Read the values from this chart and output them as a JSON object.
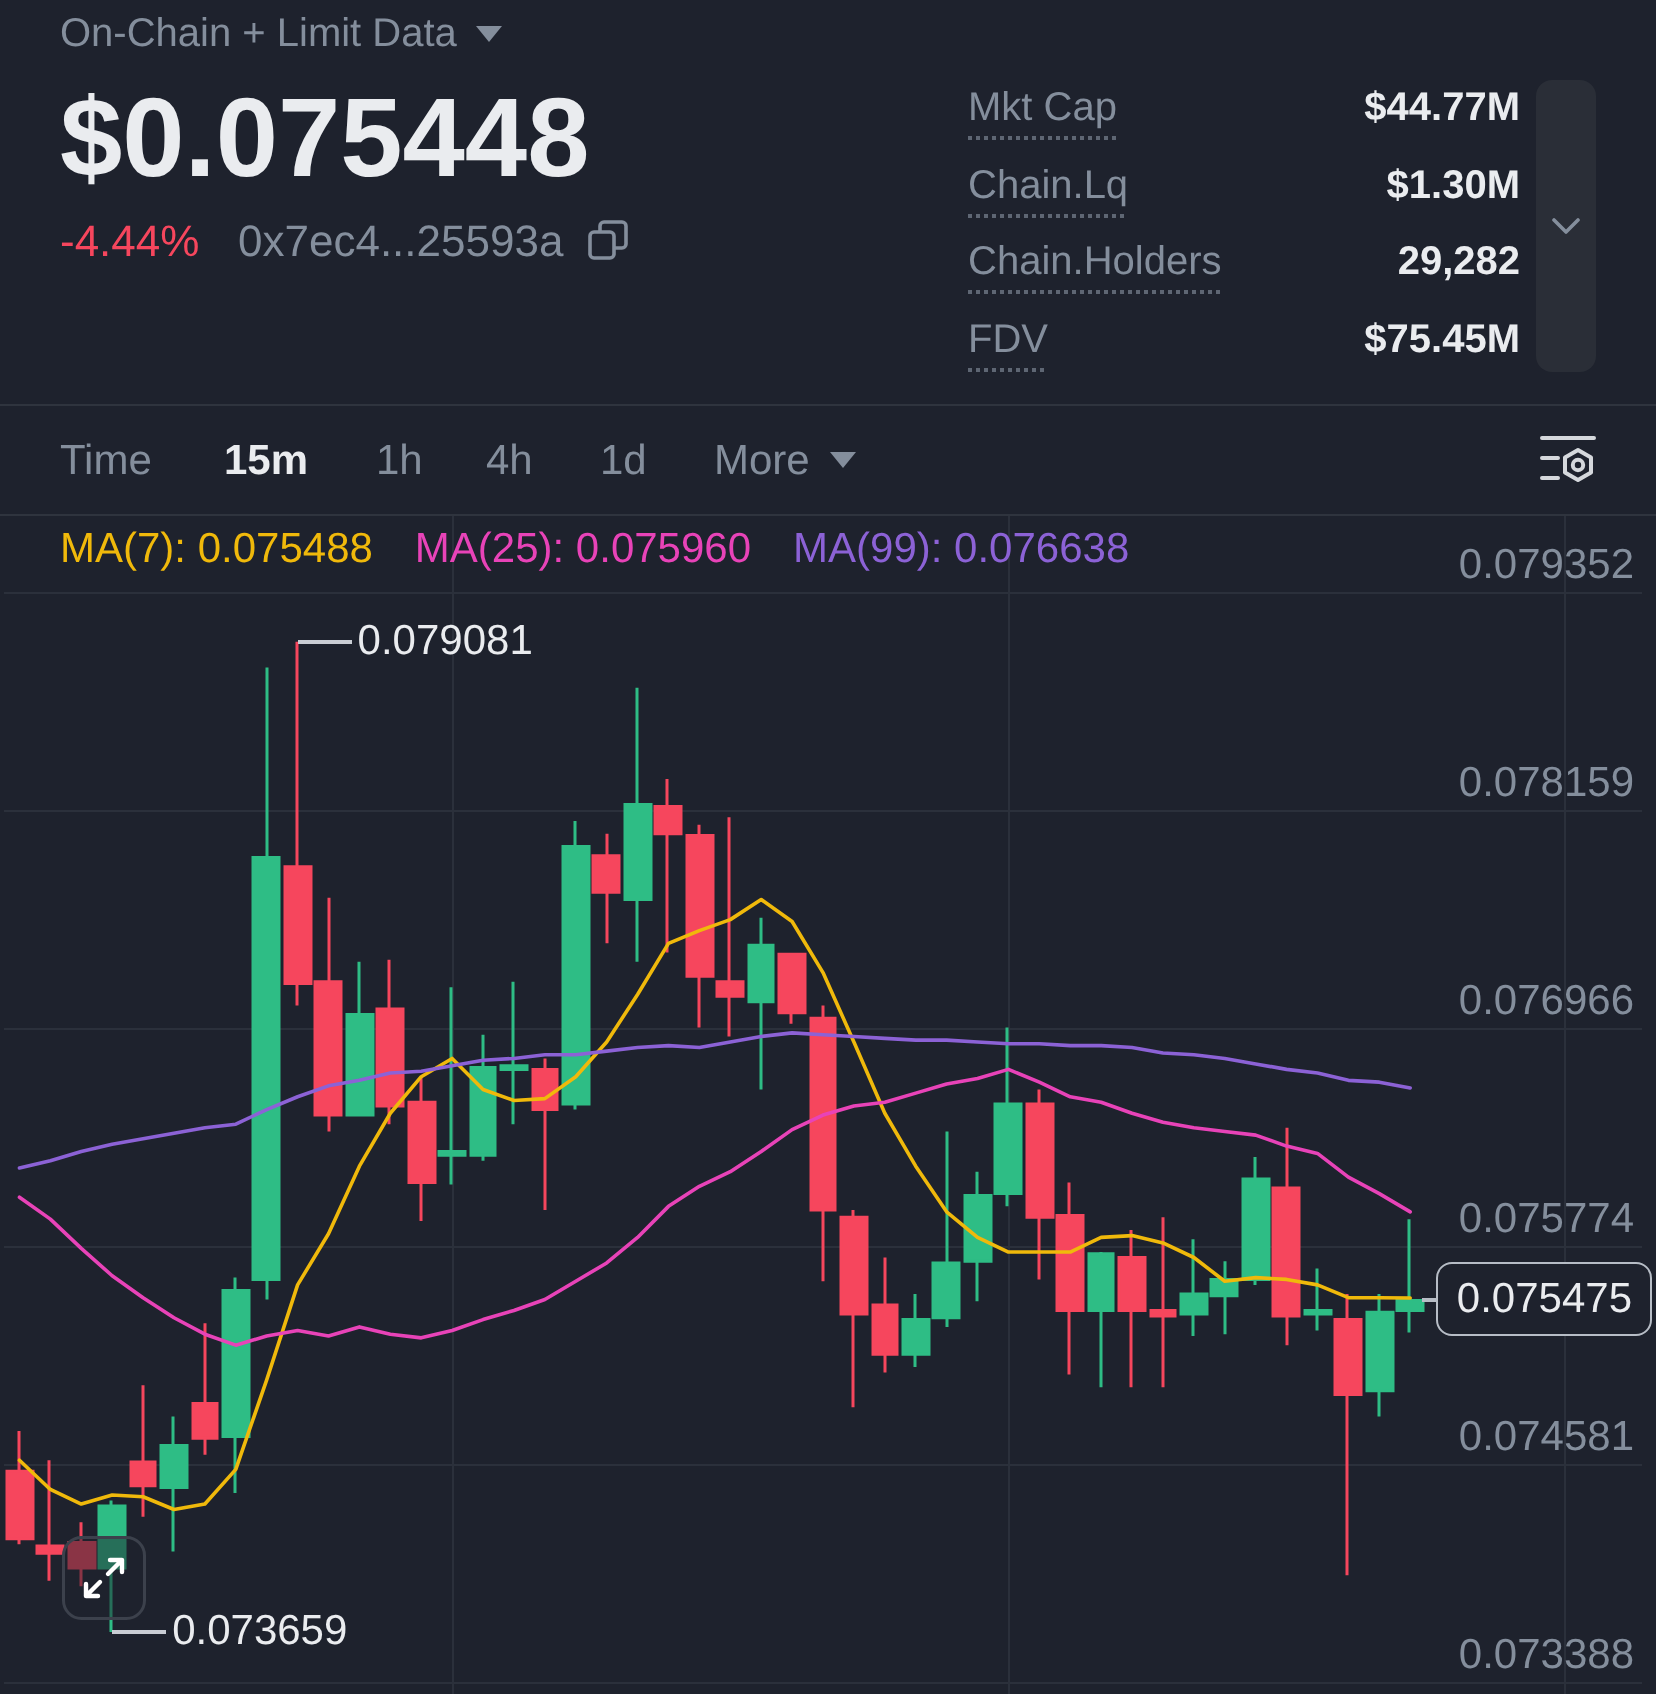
{
  "chart_data": {
    "type": "candlestick",
    "title": "$0.075448",
    "categories": [
      null,
      null,
      null,
      null,
      null,
      null,
      null,
      null,
      null,
      null,
      null,
      null,
      null,
      null,
      null,
      null,
      null,
      null,
      null,
      null,
      null,
      null,
      null,
      null,
      null,
      null,
      null,
      null,
      null,
      null,
      null,
      null,
      null,
      null,
      null,
      null,
      null,
      null,
      null,
      null,
      null,
      null,
      null,
      null,
      null,
      null
    ],
    "ohlc": [
      [
        0.07454,
        0.07476,
        0.07414,
        0.07417
      ],
      [
        0.07413,
        0.0746,
        0.07394,
        0.07409
      ],
      [
        0.07415,
        0.07426,
        0.07391,
        0.07401
      ],
      [
        0.07401,
        0.07438,
        0.073659,
        0.07435
      ],
      [
        0.07459,
        0.07501,
        0.07429,
        0.07446
      ],
      [
        0.07445,
        0.07484,
        0.0741,
        0.07468
      ],
      [
        0.07491,
        0.07535,
        0.07463,
        0.07472
      ],
      [
        0.07473,
        0.0756,
        0.07442,
        0.07553
      ],
      [
        0.07559,
        0.07894,
        0.07548,
        0.0779
      ],
      [
        0.07785,
        0.079081,
        0.07709,
        0.07721
      ],
      [
        0.07722,
        0.07768,
        0.0764,
        0.07649
      ],
      [
        0.07649,
        0.07733,
        0.07649,
        0.07704
      ],
      [
        0.07707,
        0.07734,
        0.07644,
        0.07654
      ],
      [
        0.07656,
        0.0767,
        0.07591,
        0.07612
      ],
      [
        0.07627,
        0.07719,
        0.07611,
        0.07629
      ],
      [
        0.07627,
        0.07693,
        0.07624,
        0.07675
      ],
      [
        0.07674,
        0.07722,
        0.07644,
        0.07676
      ],
      [
        0.07674,
        0.0768,
        0.07597,
        0.07652
      ],
      [
        0.07655,
        0.0781,
        0.07652,
        0.07796
      ],
      [
        0.07791,
        0.07803,
        0.07743,
        0.07771
      ],
      [
        0.07767,
        0.07883,
        0.07733,
        0.07819
      ],
      [
        0.07818,
        0.07833,
        0.07738,
        0.07803
      ],
      [
        0.07802,
        0.07808,
        0.07697,
        0.07725
      ],
      [
        0.07722,
        0.07812,
        0.07692,
        0.07714
      ],
      [
        0.07711,
        0.07757,
        0.07663,
        0.07742
      ],
      [
        0.07737,
        0.07737,
        0.07699,
        0.07705
      ],
      [
        0.07702,
        0.07709,
        0.07558,
        0.07597
      ],
      [
        0.07593,
        0.07597,
        0.07489,
        0.0754
      ],
      [
        0.07545,
        0.07571,
        0.07508,
        0.07518
      ],
      [
        0.07518,
        0.07551,
        0.07511,
        0.07537
      ],
      [
        0.07538,
        0.0764,
        0.07533,
        0.07568
      ],
      [
        0.07569,
        0.07618,
        0.07547,
        0.07605
      ],
      [
        0.07606,
        0.07697,
        0.07599,
        0.07655
      ],
      [
        0.07655,
        0.07663,
        0.07559,
        0.07593
      ],
      [
        0.07594,
        0.07612,
        0.07507,
        0.07542
      ],
      [
        0.07542,
        0.07574,
        0.075,
        0.07573
      ],
      [
        0.07571,
        0.07586,
        0.075,
        0.07542
      ],
      [
        0.07542,
        0.07593,
        0.075,
        0.07539
      ],
      [
        0.0754,
        0.07581,
        0.07528,
        0.07551
      ],
      [
        0.0755,
        0.07569,
        0.07529,
        0.07559
      ],
      [
        0.07559,
        0.07626,
        0.07556,
        0.07614
      ],
      [
        0.07609,
        0.07642,
        0.07523,
        0.07539
      ],
      [
        0.0754,
        0.07565,
        0.07531,
        0.07542
      ],
      [
        0.07537,
        0.07551,
        0.07397,
        0.07496
      ],
      [
        0.07498,
        0.07551,
        0.07484,
        0.07541
      ],
      [
        0.07542,
        0.07592,
        0.0753,
        0.075475
      ]
    ],
    "colors": [
      "#f6465d",
      "#f6465d",
      "#f6465d",
      "#2ebd85",
      "#f6465d",
      "#2ebd85",
      "#f6465d",
      "#2ebd85",
      "#2ebd85",
      "#f6465d",
      "#f6465d",
      "#2ebd85",
      "#f6465d",
      "#f6465d",
      "#2ebd85",
      "#2ebd85",
      "#2ebd85",
      "#f6465d",
      "#2ebd85",
      "#f6465d",
      "#2ebd85",
      "#f6465d",
      "#f6465d",
      "#f6465d",
      "#2ebd85",
      "#f6465d",
      "#f6465d",
      "#f6465d",
      "#f6465d",
      "#2ebd85",
      "#2ebd85",
      "#2ebd85",
      "#2ebd85",
      "#f6465d",
      "#f6465d",
      "#2ebd85",
      "#f6465d",
      "#f6465d",
      "#2ebd85",
      "#2ebd85",
      "#2ebd85",
      "#f6465d",
      "#2ebd85",
      "#f6465d",
      "#2ebd85",
      "#2ebd85"
    ],
    "series": [
      {
        "type": "line",
        "name": "MA(7): 0.075488",
        "color": "#f0b90b",
        "values": [
          0.0746,
          0.07444,
          0.07436,
          0.07441,
          0.0744,
          0.07433,
          0.07436,
          0.07455,
          0.07504,
          0.07556,
          0.07584,
          0.07621,
          0.0765,
          0.0767,
          0.0768,
          0.07663,
          0.07657,
          0.07658,
          0.0767,
          0.07689,
          0.07715,
          0.07743,
          0.0775,
          0.07756,
          0.07767,
          0.07755,
          0.07727,
          0.07689,
          0.0765,
          0.07621,
          0.07596,
          0.07582,
          0.07574,
          0.07574,
          0.07574,
          0.07582,
          0.07583,
          0.07579,
          0.07571,
          0.07558,
          0.0756,
          0.07559,
          0.07556,
          0.07549,
          0.07549,
          0.075488
        ]
      },
      {
        "type": "line",
        "name": "MA(25): 0.075960",
        "color": "#e843b8",
        "values": [
          0.07604,
          0.07592,
          0.07576,
          0.07561,
          0.07549,
          0.07538,
          0.07529,
          0.07523,
          0.07528,
          0.07531,
          0.07528,
          0.07533,
          0.07529,
          0.07527,
          0.07531,
          0.07537,
          0.07542,
          0.07548,
          0.07558,
          0.07568,
          0.07582,
          0.07599,
          0.0761,
          0.07618,
          0.07629,
          0.07641,
          0.07649,
          0.07654,
          0.07656,
          0.07661,
          0.07666,
          0.07669,
          0.07674,
          0.07667,
          0.07659,
          0.07656,
          0.0765,
          0.07645,
          0.07642,
          0.0764,
          0.07638,
          0.07632,
          0.07628,
          0.07615,
          0.07606,
          0.07596
        ]
      },
      {
        "type": "line",
        "name": "MA(99): 0.076638",
        "color": "#8c62d6",
        "values": [
          0.0762,
          0.07624,
          0.07629,
          0.07633,
          0.07636,
          0.07639,
          0.07642,
          0.07644,
          0.07652,
          0.07659,
          0.07665,
          0.07668,
          0.07672,
          0.07673,
          0.07676,
          0.07679,
          0.0768,
          0.07682,
          0.07682,
          0.07684,
          0.07686,
          0.07687,
          0.07686,
          0.07689,
          0.07692,
          0.07694,
          0.07693,
          0.07692,
          0.07691,
          0.0769,
          0.0769,
          0.07689,
          0.07688,
          0.07688,
          0.07687,
          0.07687,
          0.07686,
          0.07683,
          0.07682,
          0.0768,
          0.07677,
          0.07674,
          0.07672,
          0.07668,
          0.07667,
          0.076638
        ]
      }
    ],
    "ylim": [
      0.07332,
      0.07977
    ],
    "yticks": [
      0.073388,
      0.074581,
      0.075774,
      0.076966,
      0.078159,
      0.079352
    ],
    "tick_labels": "y",
    "grid": true,
    "legend": "top left",
    "marker": "none",
    "line_style": "solid",
    "annotations": [
      "On-Chain + Limit Data",
      "-4.44%",
      "0x7ec4...25593a",
      "Mkt Cap",
      "$44.77M",
      "Chain.Lq",
      "$1.30M",
      "Chain.Holders",
      "29,282",
      "FDV",
      "$75.45M",
      "Time",
      "15m",
      "1h",
      "4h",
      "1d",
      "More",
      "0.079081",
      "0.073659",
      "0.075475"
    ]
  }
}
